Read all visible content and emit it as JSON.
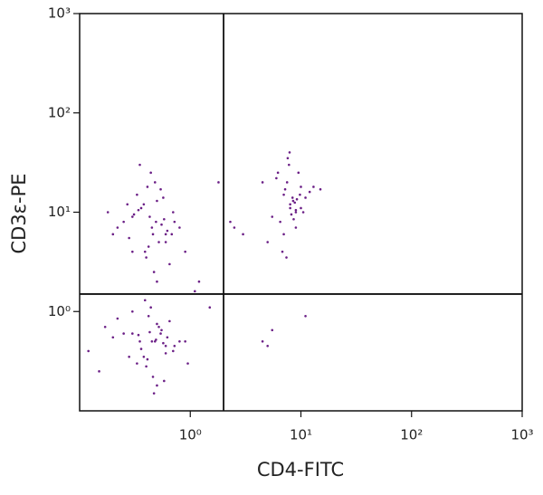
{
  "chart_data": {
    "type": "scatter",
    "x_label": "CD4-FITC",
    "y_label": "CD3ε-PE",
    "color": "#6b1f86",
    "log_scale": true,
    "xlim": [
      0.1,
      1000
    ],
    "ylim": [
      0.1,
      1000
    ],
    "xticks": [
      {
        "value": 1,
        "label": "10⁰"
      },
      {
        "value": 10,
        "label": "10¹"
      },
      {
        "value": 100,
        "label": "10²"
      },
      {
        "value": 1000,
        "label": "10³"
      }
    ],
    "yticks": [
      {
        "value": 1,
        "label": "10⁰"
      },
      {
        "value": 10,
        "label": "10¹"
      },
      {
        "value": 100,
        "label": "10²"
      },
      {
        "value": 1000,
        "label": "10³"
      }
    ],
    "gates": {
      "x": 2,
      "y": 1.5
    },
    "x": [
      0.45,
      0.3,
      0.6,
      0.38,
      0.52,
      0.25,
      0.7,
      0.42,
      0.33,
      0.55,
      0.48,
      0.2,
      0.65,
      0.36,
      0.58,
      0.28,
      0.44,
      0.8,
      0.4,
      0.5,
      0.31,
      0.62,
      0.47,
      0.18,
      0.54,
      0.39,
      0.72,
      0.35,
      0.46,
      0.27,
      0.6,
      0.43,
      0.22,
      0.57,
      0.5,
      0.34,
      0.68,
      0.41,
      0.3,
      0.49,
      0.45,
      0.3,
      0.6,
      0.38,
      0.52,
      0.2,
      0.7,
      0.42,
      0.33,
      0.55,
      0.48,
      0.15,
      0.65,
      0.36,
      0.58,
      0.25,
      0.44,
      0.8,
      0.4,
      0.5,
      0.12,
      0.62,
      0.47,
      0.28,
      0.54,
      0.39,
      0.72,
      0.35,
      0.46,
      0.17,
      0.6,
      0.43,
      0.22,
      0.57,
      0.5,
      0.34,
      0.9,
      0.41,
      0.3,
      0.49,
      8,
      7,
      9,
      6.5,
      10,
      7.5,
      8.5,
      5.5,
      11,
      9.5,
      7,
      8,
      12,
      6,
      9,
      7.8,
      8.8,
      5,
      10.5,
      7.2,
      8.2,
      13,
      6.8,
      9.2,
      7.6,
      4.5,
      8.6,
      10,
      7.4,
      9.8,
      6.2,
      8.4,
      15,
      7.9,
      9,
      1.2,
      1.5,
      0.9,
      2.3,
      1.8,
      3,
      2.5,
      4.5,
      5,
      0.95,
      1.1,
      11,
      5.5
    ],
    "y": [
      7,
      9,
      6,
      12,
      5,
      8,
      10,
      4.5,
      15,
      7.5,
      20,
      6,
      3,
      11,
      8.5,
      5.5,
      25,
      7,
      3.5,
      13,
      9.5,
      6.5,
      2.5,
      10,
      17,
      4,
      8,
      30,
      6,
      12,
      5,
      9,
      7,
      14,
      2,
      10.5,
      6,
      18,
      4,
      8,
      0.5,
      0.6,
      0.45,
      0.35,
      0.7,
      0.55,
      0.4,
      0.9,
      0.3,
      0.65,
      0.5,
      0.25,
      0.8,
      0.42,
      0.2,
      0.6,
      1.1,
      0.5,
      0.28,
      0.75,
      0.4,
      0.55,
      0.15,
      0.35,
      0.6,
      1.3,
      0.45,
      0.5,
      0.22,
      0.7,
      0.38,
      0.62,
      0.85,
      0.48,
      0.18,
      0.58,
      0.5,
      0.33,
      1.0,
      0.52,
      12,
      15,
      10,
      8,
      18,
      20,
      13,
      9,
      14,
      25,
      6,
      11,
      16,
      22,
      7,
      30,
      12.5,
      5,
      10,
      17,
      9.5,
      18,
      4,
      13.5,
      35,
      20,
      8.5,
      11,
      3.5,
      15,
      25,
      14,
      17,
      40,
      10.5,
      2,
      1.1,
      4,
      8,
      20,
      6,
      7,
      0.5,
      0.45,
      0.3,
      1.6,
      0.9,
      0.65
    ]
  }
}
